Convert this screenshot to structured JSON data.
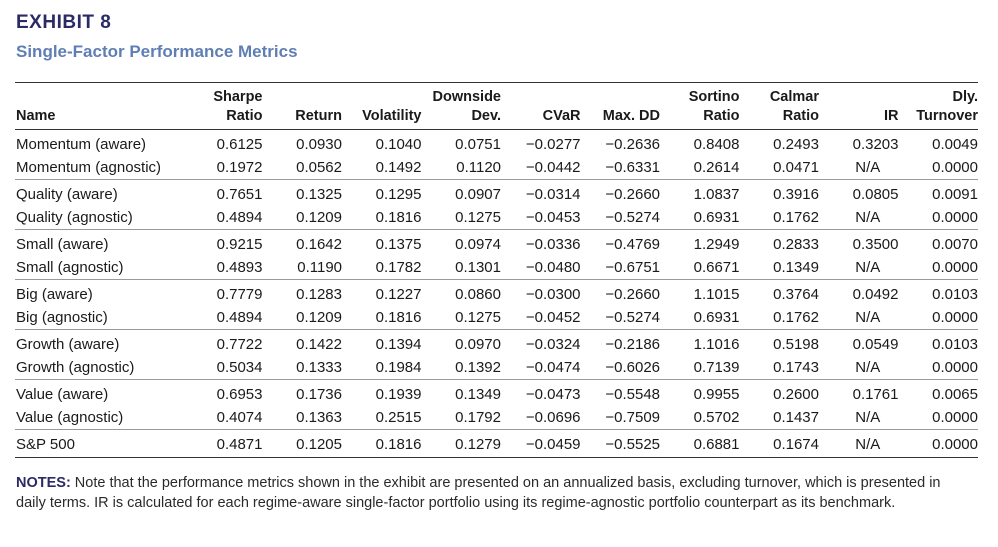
{
  "exhibit": {
    "label": "EXHIBIT 8",
    "title": "Single-Factor Performance Metrics"
  },
  "table": {
    "headers": [
      {
        "top": "",
        "bottom": "Name"
      },
      {
        "top": "Sharpe",
        "bottom": "Ratio"
      },
      {
        "top": "",
        "bottom": "Return"
      },
      {
        "top": "",
        "bottom": "Volatility"
      },
      {
        "top": "Downside",
        "bottom": "Dev."
      },
      {
        "top": "",
        "bottom": "CVaR"
      },
      {
        "top": "",
        "bottom": "Max. DD"
      },
      {
        "top": "Sortino",
        "bottom": "Ratio"
      },
      {
        "top": "Calmar",
        "bottom": "Ratio"
      },
      {
        "top": "",
        "bottom": "IR"
      },
      {
        "top": "Dly.",
        "bottom": "Turnover"
      }
    ],
    "groups": [
      {
        "rows": [
          [
            "Momentum (aware)",
            "0.6125",
            "0.0930",
            "0.1040",
            "0.0751",
            "−0.0277",
            "−0.2636",
            "0.8408",
            "0.2493",
            "0.3203",
            "0.0049"
          ],
          [
            "Momentum (agnostic)",
            "0.1972",
            "0.0562",
            "0.1492",
            "0.1120",
            "−0.0442",
            "−0.6331",
            "0.2614",
            "0.0471",
            "N/A",
            "0.0000"
          ]
        ]
      },
      {
        "rows": [
          [
            "Quality (aware)",
            "0.7651",
            "0.1325",
            "0.1295",
            "0.0907",
            "−0.0314",
            "−0.2660",
            "1.0837",
            "0.3916",
            "0.0805",
            "0.0091"
          ],
          [
            "Quality (agnostic)",
            "0.4894",
            "0.1209",
            "0.1816",
            "0.1275",
            "−0.0453",
            "−0.5274",
            "0.6931",
            "0.1762",
            "N/A",
            "0.0000"
          ]
        ]
      },
      {
        "rows": [
          [
            "Small (aware)",
            "0.9215",
            "0.1642",
            "0.1375",
            "0.0974",
            "−0.0336",
            "−0.4769",
            "1.2949",
            "0.2833",
            "0.3500",
            "0.0070"
          ],
          [
            "Small (agnostic)",
            "0.4893",
            "0.1190",
            "0.1782",
            "0.1301",
            "−0.0480",
            "−0.6751",
            "0.6671",
            "0.1349",
            "N/A",
            "0.0000"
          ]
        ]
      },
      {
        "rows": [
          [
            "Big (aware)",
            "0.7779",
            "0.1283",
            "0.1227",
            "0.0860",
            "−0.0300",
            "−0.2660",
            "1.1015",
            "0.3764",
            "0.0492",
            "0.0103"
          ],
          [
            "Big (agnostic)",
            "0.4894",
            "0.1209",
            "0.1816",
            "0.1275",
            "−0.0452",
            "−0.5274",
            "0.6931",
            "0.1762",
            "N/A",
            "0.0000"
          ]
        ]
      },
      {
        "rows": [
          [
            "Growth (aware)",
            "0.7722",
            "0.1422",
            "0.1394",
            "0.0970",
            "−0.0324",
            "−0.2186",
            "1.1016",
            "0.5198",
            "0.0549",
            "0.0103"
          ],
          [
            "Growth (agnostic)",
            "0.5034",
            "0.1333",
            "0.1984",
            "0.1392",
            "−0.0474",
            "−0.6026",
            "0.7139",
            "0.1743",
            "N/A",
            "0.0000"
          ]
        ]
      },
      {
        "rows": [
          [
            "Value (aware)",
            "0.6953",
            "0.1736",
            "0.1939",
            "0.1349",
            "−0.0473",
            "−0.5548",
            "0.9955",
            "0.2600",
            "0.1761",
            "0.0065"
          ],
          [
            "Value (agnostic)",
            "0.4074",
            "0.1363",
            "0.2515",
            "0.1792",
            "−0.0696",
            "−0.7509",
            "0.5702",
            "0.1437",
            "N/A",
            "0.0000"
          ]
        ]
      },
      {
        "rows": [
          [
            "S&P 500",
            "0.4871",
            "0.1205",
            "0.1816",
            "0.1279",
            "−0.0459",
            "−0.5525",
            "0.6881",
            "0.1674",
            "N/A",
            "0.0000"
          ]
        ]
      }
    ]
  },
  "notes": {
    "label": "NOTES:",
    "text": " Note that the performance metrics shown in the exhibit are presented on an annualized basis, excluding turnover, which is presented in daily terms. IR is calculated for each regime-aware single-factor portfolio using its regime-agnostic portfolio counterpart as its benchmark."
  },
  "colors": {
    "exhibit_label": "#2b2a66",
    "exhibit_title": "#5f7fb4",
    "rule": "#333333"
  }
}
